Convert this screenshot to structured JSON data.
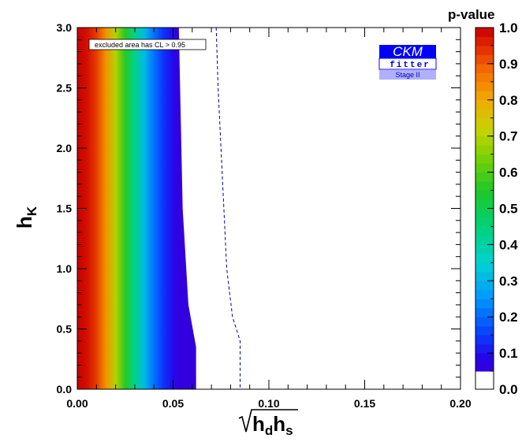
{
  "chart_data": {
    "type": "heatmap",
    "title": "",
    "xlabel": "√(h_d h_s)",
    "xlabel_parts": {
      "main": "h",
      "sub1": "d",
      "mid": "h",
      "sub2": "s"
    },
    "ylabel": "h_K",
    "ylabel_parts": {
      "main": "h",
      "sub": "K"
    },
    "xlim": [
      0.0,
      0.2
    ],
    "ylim": [
      0.0,
      3.0
    ],
    "x_ticks": [
      "0.00",
      "0.05",
      "0.10",
      "0.15",
      "0.20"
    ],
    "x_tick_values": [
      0.0,
      0.05,
      0.1,
      0.15,
      0.2
    ],
    "y_ticks": [
      "0.0",
      "0.5",
      "1.0",
      "1.5",
      "2.0",
      "2.5",
      "3.0"
    ],
    "y_tick_values": [
      0.0,
      0.5,
      1.0,
      1.5,
      2.0,
      2.5,
      3.0
    ],
    "colorbar": {
      "title": "p-value",
      "ticks": [
        "0.0",
        "0.1",
        "0.2",
        "0.3",
        "0.4",
        "0.5",
        "0.6",
        "0.7",
        "0.8",
        "0.9",
        "1.0"
      ],
      "tick_values": [
        0.0,
        0.1,
        0.2,
        0.3,
        0.4,
        0.5,
        0.6,
        0.7,
        0.8,
        0.9,
        1.0
      ],
      "white_below": 0.05
    },
    "legend_text": "excluded area has CL > 0.95",
    "allowed_region_boundary": {
      "description_points": [
        [
          0.053,
          3.0
        ],
        [
          0.055,
          1.5
        ],
        [
          0.058,
          0.7
        ],
        [
          0.062,
          0.35
        ],
        [
          0.062,
          0.0
        ]
      ]
    },
    "dashed_contour": [
      [
        0.0725,
        3.0
      ],
      [
        0.0735,
        2.5
      ],
      [
        0.075,
        2.0
      ],
      [
        0.0765,
        1.5
      ],
      [
        0.078,
        1.0
      ],
      [
        0.081,
        0.6
      ],
      [
        0.084,
        0.45
      ],
      [
        0.085,
        0.4
      ],
      [
        0.085,
        0.0
      ]
    ],
    "pvalue_profile_x": [
      0.0,
      0.005,
      0.01,
      0.015,
      0.02,
      0.025,
      0.03,
      0.035,
      0.04,
      0.045,
      0.05,
      0.053
    ],
    "pvalue_profile_values": [
      1.0,
      0.98,
      0.93,
      0.83,
      0.7,
      0.56,
      0.43,
      0.31,
      0.21,
      0.14,
      0.09,
      0.06
    ],
    "colors": {
      "dashed": "#00008b",
      "legend_box": "#000000",
      "logo_blue": "#0000ff",
      "logo_stage_bg": "#b0b0ff"
    }
  },
  "logo": {
    "top": "CKM",
    "middle": "fitter",
    "bottom": "Stage II"
  }
}
